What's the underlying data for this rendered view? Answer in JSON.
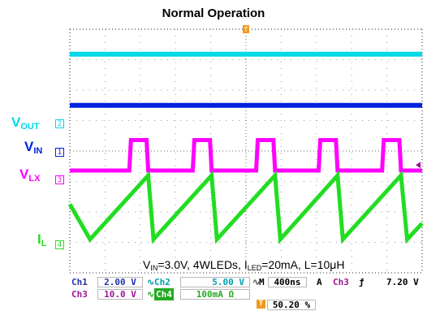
{
  "title": "Normal Operation",
  "channels": {
    "vout": {
      "label": "V",
      "sub": "OUT",
      "tag": "2",
      "color": "#00d8e8"
    },
    "vin": {
      "label": "V",
      "sub": "IN",
      "tag": "1",
      "color": "#0022dd"
    },
    "vlx": {
      "label": "V",
      "sub": "LX",
      "tag": "3",
      "color": "#ff00ff"
    },
    "il": {
      "label": "I",
      "sub": "L",
      "tag": "4",
      "color": "#22dd22"
    }
  },
  "conditions": {
    "vin_sym": "V",
    "vin_sub": "IN",
    "vin_rest": "=3.0V, 4WLEDs, I",
    "iled_sub": "LED",
    "iled_rest": "=20mA, L=10μH"
  },
  "status": {
    "ch1_name": "Ch1",
    "ch1_scale": "2.00 V",
    "ch2_name": "Ch2",
    "ch2_scale": "5.00 V",
    "ch3_name": "Ch3",
    "ch3_scale": "10.0 V",
    "ch4_name": "Ch4",
    "ch4_scale": "100mA Ω",
    "timebase_prefix": "M",
    "timebase": "400ns",
    "trigger_mode": "A",
    "trigger_source": "Ch3",
    "trigger_slope": "ƒ",
    "trigger_level": "7.20 V",
    "trigger_position": "50.20 %"
  },
  "chart_data": {
    "type": "line",
    "title": "Normal Operation",
    "x_unit": "ns",
    "x_range": [
      0,
      4000
    ],
    "time_per_div": "400ns",
    "grid": "on",
    "series": [
      {
        "name": "Ch2",
        "display_label": "VOUT",
        "volts_per_div": 5.0,
        "shape": "dc",
        "level_div": 3.18
      },
      {
        "name": "Ch1",
        "display_label": "VIN",
        "volts_per_div": 2.0,
        "shape": "dc",
        "level_div": 1.5
      },
      {
        "name": "Ch3",
        "display_label": "VLX",
        "volts_per_div": 10.0,
        "shape": "pulse",
        "high_level_div": 0.36,
        "low_level_div": -0.64,
        "period_ns": 715,
        "duty_fraction": 0.3,
        "rise_edges_ns": [
          890,
          1610,
          2330,
          3040,
          3760
        ]
      },
      {
        "name": "Ch4",
        "display_label": "IL",
        "units_per_div": "100mA",
        "shape": "triangle",
        "peak_level_div": -0.8,
        "valley_level_div": -2.9,
        "peaks_ns": [
          890,
          1610,
          2330,
          3040,
          3760
        ],
        "valleys_ns": [
          230,
          950,
          1670,
          2390,
          3100,
          3830
        ]
      }
    ]
  }
}
